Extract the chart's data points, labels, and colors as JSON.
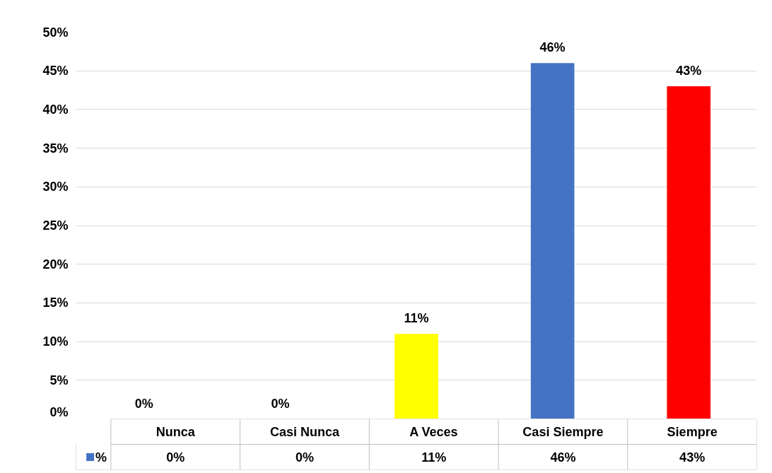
{
  "chart_data": {
    "type": "bar",
    "categories": [
      "Nunca",
      "Casi Nunca",
      "A Veces",
      "Casi Siempre",
      "Siempre"
    ],
    "series": [
      {
        "name": "%",
        "color": "#4472c4",
        "colors": [
          "#4472c4",
          "#4472c4",
          "#ffff00",
          "#4472c4",
          "#ff0000"
        ],
        "values": [
          0,
          0,
          11,
          46,
          43
        ],
        "value_labels": [
          "0%",
          "0%",
          "11%",
          "46%",
          "43%"
        ]
      }
    ],
    "ylim": [
      0,
      50
    ],
    "yticks": [
      {
        "value": 0,
        "label": "0%"
      },
      {
        "value": 5,
        "label": "5%"
      },
      {
        "value": 10,
        "label": "10%"
      },
      {
        "value": 15,
        "label": "15%"
      },
      {
        "value": 20,
        "label": "20%"
      },
      {
        "value": 25,
        "label": "25%"
      },
      {
        "value": 30,
        "label": "30%"
      },
      {
        "value": 35,
        "label": "35%"
      },
      {
        "value": 40,
        "label": "40%"
      },
      {
        "value": 45,
        "label": "45%"
      },
      {
        "value": 50,
        "label": "50%"
      }
    ],
    "grid": "y",
    "legend": "bottom"
  }
}
